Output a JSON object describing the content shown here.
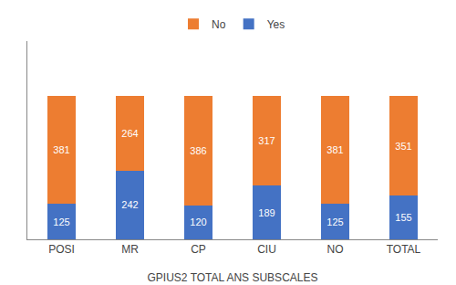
{
  "chart_data": {
    "type": "bar",
    "stacked": true,
    "categories": [
      "POSI",
      "MR",
      "CP",
      "CIU",
      "NO",
      "TOTAL"
    ],
    "series": [
      {
        "name": "Yes",
        "color": "#4472C4",
        "values": [
          125,
          242,
          120,
          189,
          125,
          155
        ]
      },
      {
        "name": "No",
        "color": "#ED7D31",
        "values": [
          381,
          264,
          386,
          317,
          381,
          351
        ]
      }
    ],
    "xlabel": "GPIUS2 TOTAL ANS SUBSCALES",
    "ylim": [
      0,
      700
    ],
    "data_labels": true,
    "tick_labels": "x",
    "grid": false,
    "legend": "top"
  }
}
